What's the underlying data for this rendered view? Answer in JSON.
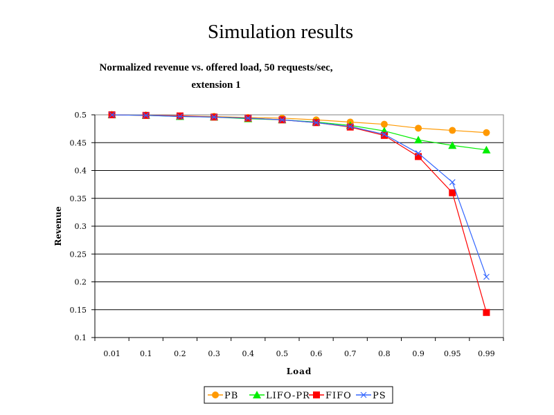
{
  "slide_title": "Simulation results",
  "chart_data": {
    "type": "line",
    "title": "Normalized revenue vs. offered load, 50 requests/sec, extension 1",
    "title_lines": [
      "Normalized revenue vs. offered load, 50 requests/sec,",
      "extension 1"
    ],
    "xlabel": "Load",
    "ylabel": "Revenue",
    "categories": [
      "0.01",
      "0.1",
      "0.2",
      "0.3",
      "0.4",
      "0.5",
      "0.6",
      "0.7",
      "0.8",
      "0.9",
      "0.95",
      "0.99"
    ],
    "ylim": [
      0.1,
      0.5
    ],
    "yticks": [
      "0.1",
      "0.15",
      "0.2",
      "0.25",
      "0.3",
      "0.35",
      "0.4",
      "0.45",
      "0.5"
    ],
    "grid": true,
    "legend_position": "bottom",
    "series": [
      {
        "name": "PB",
        "color": "#ff9900",
        "marker": "circle",
        "values": [
          0.5,
          0.499,
          0.498,
          0.497,
          0.495,
          0.494,
          0.491,
          0.487,
          0.483,
          0.476,
          0.472,
          0.468
        ]
      },
      {
        "name": "LIFO-PR",
        "color": "#00ee00",
        "marker": "triangle",
        "values": [
          0.5,
          0.499,
          0.497,
          0.496,
          0.493,
          0.491,
          0.487,
          0.481,
          0.471,
          0.455,
          0.445,
          0.437
        ]
      },
      {
        "name": "FIFO",
        "color": "#ff0000",
        "marker": "square",
        "values": [
          0.5,
          0.499,
          0.498,
          0.496,
          0.494,
          0.491,
          0.486,
          0.478,
          0.463,
          0.425,
          0.36,
          0.145
        ]
      },
      {
        "name": "PS",
        "color": "#3366ff",
        "marker": "x",
        "values": [
          0.5,
          0.499,
          0.497,
          0.496,
          0.494,
          0.491,
          0.486,
          0.479,
          0.465,
          0.431,
          0.379,
          0.209
        ]
      }
    ]
  }
}
